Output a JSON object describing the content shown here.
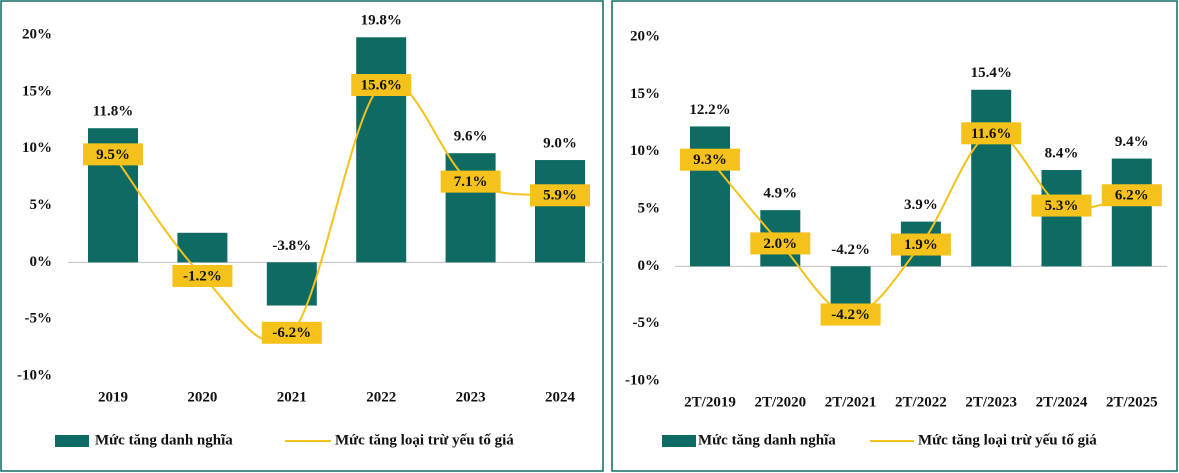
{
  "chart_data": [
    {
      "type": "combo",
      "categories": [
        "2019",
        "2020",
        "2021",
        "2022",
        "2023",
        "2024"
      ],
      "series": [
        {
          "name": "Mức tăng danh nghĩa",
          "type": "bar",
          "color": "#0e6b64",
          "values": [
            11.8,
            2.6,
            -3.8,
            19.8,
            9.6,
            9.0
          ],
          "value_labels": [
            "11.8%",
            null,
            "-3.8%",
            "19.8%",
            "9.6%",
            "9.0%"
          ]
        },
        {
          "name": "Mức tăng loại trừ yếu tố giá",
          "type": "line",
          "color": "#f5c21b",
          "values": [
            9.5,
            -1.2,
            -6.2,
            15.6,
            7.1,
            5.9
          ],
          "value_labels": [
            "9.5%",
            "-1.2%",
            "-6.2%",
            "15.6%",
            "7.1%",
            "5.9%"
          ]
        }
      ],
      "ylim": [
        -10,
        20
      ],
      "yticks": [
        {
          "value": -10,
          "label": "-10%"
        },
        {
          "value": -5,
          "label": "-5%"
        },
        {
          "value": 0,
          "label": "0%"
        },
        {
          "value": 5,
          "label": "5%"
        },
        {
          "value": 10,
          "label": "10%"
        },
        {
          "value": 15,
          "label": "15%"
        },
        {
          "value": 20,
          "label": "20%"
        }
      ],
      "legend": "bottom"
    },
    {
      "type": "combo",
      "categories": [
        "2T/2019",
        "2T/2020",
        "2T/2021",
        "2T/2022",
        "2T/2023",
        "2T/2024",
        "2T/2025"
      ],
      "series": [
        {
          "name": "Mức tăng danh nghĩa",
          "type": "bar",
          "color": "#0e6b64",
          "values": [
            12.2,
            4.9,
            -4.2,
            3.9,
            15.4,
            8.4,
            9.4
          ],
          "value_labels": [
            "12.2%",
            "4.9%",
            "-4.2%",
            "3.9%",
            "15.4%",
            "8.4%",
            "9.4%"
          ]
        },
        {
          "name": "Mức tăng loại trừ yếu tố giá",
          "type": "line",
          "color": "#f5c21b",
          "values": [
            9.3,
            2.0,
            -4.2,
            1.9,
            11.6,
            5.3,
            6.2
          ],
          "value_labels": [
            "9.3%",
            "2.0%",
            "-4.2%",
            "1.9%",
            "11.6%",
            "5.3%",
            "6.2%"
          ]
        }
      ],
      "ylim": [
        -10,
        20
      ],
      "yticks": [
        {
          "value": -10,
          "label": "-10%"
        },
        {
          "value": -5,
          "label": "-5%"
        },
        {
          "value": 0,
          "label": "0%"
        },
        {
          "value": 5,
          "label": "5%"
        },
        {
          "value": 10,
          "label": "10%"
        },
        {
          "value": 15,
          "label": "15%"
        },
        {
          "value": 20,
          "label": "20%"
        }
      ],
      "legend": "bottom"
    }
  ]
}
